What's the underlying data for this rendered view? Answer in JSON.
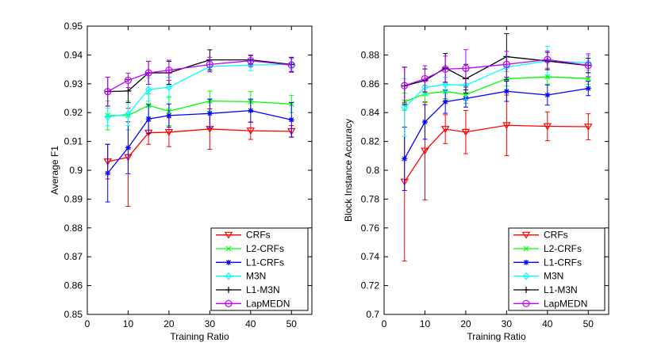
{
  "chart_data": [
    {
      "type": "line",
      "title": "",
      "xlabel": "Training Ratio",
      "ylabel": "Average F1",
      "xlim": [
        0,
        55
      ],
      "ylim": [
        0.85,
        0.95
      ],
      "xticks": [
        0,
        10,
        20,
        30,
        40,
        50
      ],
      "xtick_labels": [
        "0",
        "10",
        "20",
        "30",
        "40",
        "50"
      ],
      "yticks": [
        0.85,
        0.86,
        0.87,
        0.88,
        0.89,
        0.9,
        0.91,
        0.92,
        0.93,
        0.94,
        0.95
      ],
      "ytick_labels": [
        "0.85",
        "0.86",
        "0.87",
        "0.88",
        "0.89",
        "0.9",
        "0.91",
        "0.92",
        "0.93",
        "0.94",
        "0.95"
      ],
      "legend_position": "bottom-right",
      "x": [
        5,
        10,
        15,
        20,
        30,
        40,
        50
      ],
      "series": [
        {
          "name": "CRFs",
          "color": "#ff0000",
          "marker": "triangle-down",
          "values": [
            0.903,
            0.9045,
            0.913,
            0.9132,
            0.9143,
            0.9137,
            0.9135
          ],
          "errors": [
            0.006,
            0.017,
            0.004,
            0.005,
            0.007,
            0.003,
            0.002
          ]
        },
        {
          "name": "L2-CRFs",
          "color": "#00ff00",
          "marker": "x",
          "values": [
            0.919,
            0.919,
            0.9225,
            0.9205,
            0.924,
            0.9238,
            0.923
          ],
          "errors": [
            0.005,
            0.005,
            0.004,
            0.005,
            0.0035,
            0.0035,
            0.003
          ]
        },
        {
          "name": "L1-CRFs",
          "color": "#0000ff",
          "marker": "star",
          "values": [
            0.899,
            0.9078,
            0.9178,
            0.919,
            0.9197,
            0.9207,
            0.9175
          ],
          "errors": [
            0.01,
            0.009,
            0.005,
            0.004,
            0.005,
            0.004,
            0.006
          ]
        },
        {
          "name": "M3N",
          "color": "#00ffff",
          "marker": "diamond",
          "values": [
            0.9185,
            0.9195,
            0.928,
            0.9288,
            0.936,
            0.9365,
            0.9367
          ],
          "errors": [
            0.003,
            0.004,
            0.004,
            0.0035,
            0.002,
            0.002,
            0.002
          ]
        },
        {
          "name": "L1-M3N",
          "color": "#000000",
          "marker": "plus",
          "values": [
            0.9273,
            0.9275,
            0.9338,
            0.9338,
            0.9383,
            0.9383,
            0.9367
          ],
          "errors": [
            0.005,
            0.004,
            0.004,
            0.004,
            0.0035,
            0.0015,
            0.0025
          ]
        },
        {
          "name": "LapMEDN",
          "color": "#bf00ff",
          "marker": "circle",
          "values": [
            0.9273,
            0.9312,
            0.9338,
            0.9347,
            0.9367,
            0.938,
            0.9365
          ],
          "errors": [
            0.005,
            0.0025,
            0.004,
            0.0035,
            0.0025,
            0.002,
            0.0025
          ]
        }
      ]
    },
    {
      "type": "line",
      "title": "",
      "xlabel": "Training Ratio",
      "ylabel": "Block Instance Accuracy",
      "xlim": [
        0,
        55
      ],
      "ylim": [
        0.7,
        0.9
      ],
      "xticks": [
        0,
        10,
        20,
        30,
        40,
        50
      ],
      "xtick_labels": [
        "0",
        "10",
        "20",
        "30",
        "40",
        "50"
      ],
      "yticks": [
        0.7,
        0.72,
        0.74,
        0.76,
        0.78,
        0.8,
        0.82,
        0.84,
        0.86,
        0.88
      ],
      "ytick_labels": [
        "0.7",
        "0.72",
        "0.74",
        "0.76",
        "0.78",
        "0.8",
        "0.82",
        "0.84",
        "0.86",
        "0.88"
      ],
      "legend_position": "bottom-right",
      "x": [
        5,
        10,
        15,
        20,
        30,
        40,
        50
      ],
      "series": [
        {
          "name": "CRFs",
          "color": "#ff0000",
          "marker": "triangle-down",
          "values": [
            0.792,
            0.8135,
            0.8285,
            0.8265,
            0.8312,
            0.8305,
            0.8302
          ],
          "errors": [
            0.055,
            0.034,
            0.01,
            0.015,
            0.021,
            0.01,
            0.009
          ]
        },
        {
          "name": "L2-CRFs",
          "color": "#00ff00",
          "marker": "x",
          "values": [
            0.8475,
            0.853,
            0.8547,
            0.8525,
            0.8635,
            0.8648,
            0.8637
          ],
          "errors": [
            0.006,
            0.006,
            0.005,
            0.006,
            0.005,
            0.005,
            0.004
          ]
        },
        {
          "name": "L1-CRFs",
          "color": "#0000ff",
          "marker": "star",
          "values": [
            0.808,
            0.8335,
            0.8475,
            0.8498,
            0.8548,
            0.8522,
            0.8568
          ],
          "errors": [
            0.022,
            0.012,
            0.008,
            0.006,
            0.007,
            0.007,
            0.005
          ]
        },
        {
          "name": "M3N",
          "color": "#00ffff",
          "marker": "diamond",
          "values": [
            0.8435,
            0.8575,
            0.8595,
            0.859,
            0.8715,
            0.876,
            0.8745
          ],
          "errors": [
            0.02,
            0.005,
            0.005,
            0.01,
            0.008,
            0.01,
            0.005
          ]
        },
        {
          "name": "L1-M3N",
          "color": "#000000",
          "marker": "plus",
          "values": [
            0.8585,
            0.8623,
            0.871,
            0.8635,
            0.8788,
            0.8758,
            0.8727
          ],
          "errors": [
            0.013,
            0.008,
            0.01,
            0.01,
            0.016,
            0.006,
            0.005
          ]
        },
        {
          "name": "LapMEDN",
          "color": "#bf00ff",
          "marker": "circle",
          "values": [
            0.8587,
            0.8635,
            0.8702,
            0.8707,
            0.8735,
            0.8768,
            0.8728
          ],
          "errors": [
            0.013,
            0.009,
            0.009,
            0.013,
            0.009,
            0.006,
            0.008
          ]
        }
      ]
    }
  ]
}
